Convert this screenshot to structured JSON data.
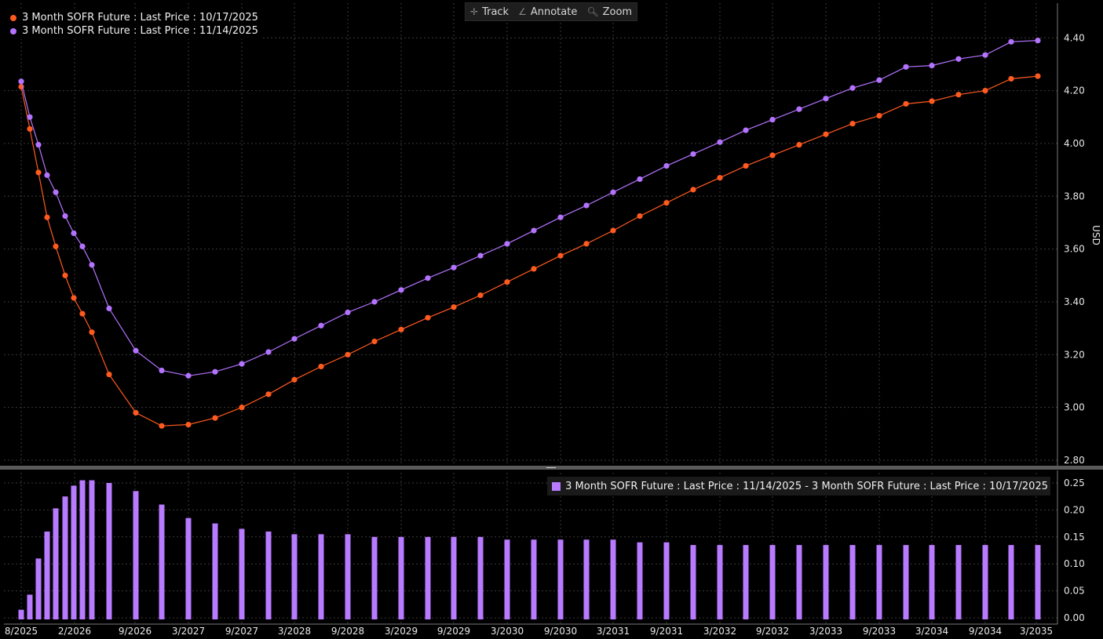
{
  "toolbar": {
    "track": "Track",
    "annotate": "Annotate",
    "zoom": "Zoom"
  },
  "colors": {
    "series1": "#ff5a1f",
    "series2": "#b473ff",
    "bars": "#b87aff",
    "grid": "#3a3a3a"
  },
  "chart_data": [
    {
      "type": "line",
      "xlabel": "",
      "ylabel": "USD",
      "ylim": [
        2.8,
        4.5
      ],
      "yticks": [
        "2.80",
        "3.00",
        "3.20",
        "3.40",
        "3.60",
        "3.80",
        "4.00",
        "4.20",
        "4.40"
      ],
      "xtick_labels": [
        "8/2025",
        "2/2026",
        "9/2026",
        "3/2027",
        "9/2027",
        "3/2028",
        "9/2028",
        "3/2029",
        "9/2029",
        "3/2030",
        "9/2030",
        "3/2031",
        "9/2031",
        "3/2032",
        "9/2032",
        "3/2033",
        "9/2033",
        "3/2034",
        "9/2034",
        "3/2035"
      ],
      "grid": true,
      "legend_position": "top-left",
      "x": [
        "9/2025",
        "10/2025",
        "11/2025",
        "12/2025",
        "1/2026",
        "2/2026",
        "3/2026",
        "4/2026",
        "5/2026",
        "6/2026",
        "9/2026",
        "12/2026",
        "3/2027",
        "6/2027",
        "9/2027",
        "12/2027",
        "3/2028",
        "6/2028",
        "9/2028",
        "12/2028",
        "3/2029",
        "6/2029",
        "9/2029",
        "12/2029",
        "3/2030",
        "6/2030",
        "9/2030",
        "12/2030",
        "3/2031",
        "6/2031",
        "9/2031",
        "12/2031",
        "3/2032",
        "6/2032",
        "9/2032",
        "12/2032",
        "3/2033",
        "6/2033",
        "9/2033",
        "12/2033",
        "3/2034",
        "6/2034",
        "9/2034",
        "12/2034",
        "3/2035"
      ],
      "series": [
        {
          "name": "3 Month SOFR Future : Last Price : 10/17/2025",
          "values": [
            4.215,
            4.055,
            3.89,
            3.72,
            3.61,
            3.5,
            3.415,
            3.355,
            3.285,
            3.125,
            2.98,
            2.93,
            2.935,
            2.96,
            3.0,
            3.05,
            3.105,
            3.155,
            3.2,
            3.25,
            3.295,
            3.34,
            3.38,
            3.425,
            3.475,
            3.525,
            3.575,
            3.62,
            3.67,
            3.725,
            3.775,
            3.825,
            3.87,
            3.915,
            3.955,
            3.995,
            4.035,
            4.075,
            4.105,
            4.15,
            4.16,
            4.185,
            4.2,
            4.245,
            4.255
          ]
        },
        {
          "name": "3 Month SOFR Future : Last Price : 11/14/2025",
          "values": [
            4.235,
            4.1,
            3.995,
            3.88,
            3.815,
            3.725,
            3.66,
            3.61,
            3.54,
            3.375,
            3.215,
            3.14,
            3.12,
            3.135,
            3.165,
            3.21,
            3.26,
            3.31,
            3.36,
            3.4,
            3.445,
            3.49,
            3.53,
            3.575,
            3.62,
            3.67,
            3.72,
            3.765,
            3.815,
            3.865,
            3.915,
            3.96,
            4.005,
            4.05,
            4.09,
            4.13,
            4.17,
            4.21,
            4.24,
            4.29,
            4.295,
            4.32,
            4.335,
            4.385,
            4.39
          ]
        }
      ]
    },
    {
      "type": "bar",
      "ylim": [
        0,
        0.27
      ],
      "yticks": [
        "0.00",
        "0.05",
        "0.10",
        "0.15",
        "0.20",
        "0.25"
      ],
      "series": [
        {
          "name": "3 Month SOFR Future : Last Price : 11/14/2025 - 3 Month SOFR Future : Last Price : 10/17/2025",
          "values": [
            0.015,
            0.043,
            0.11,
            0.16,
            0.203,
            0.225,
            0.245,
            0.255,
            0.255,
            0.25,
            0.235,
            0.21,
            0.185,
            0.175,
            0.165,
            0.16,
            0.155,
            0.155,
            0.155,
            0.15,
            0.15,
            0.15,
            0.15,
            0.15,
            0.145,
            0.145,
            0.145,
            0.145,
            0.145,
            0.14,
            0.14,
            0.135,
            0.135,
            0.135,
            0.135,
            0.135,
            0.135,
            0.135,
            0.135,
            0.135,
            0.135,
            0.135,
            0.135,
            0.135,
            0.135
          ]
        }
      ]
    }
  ]
}
